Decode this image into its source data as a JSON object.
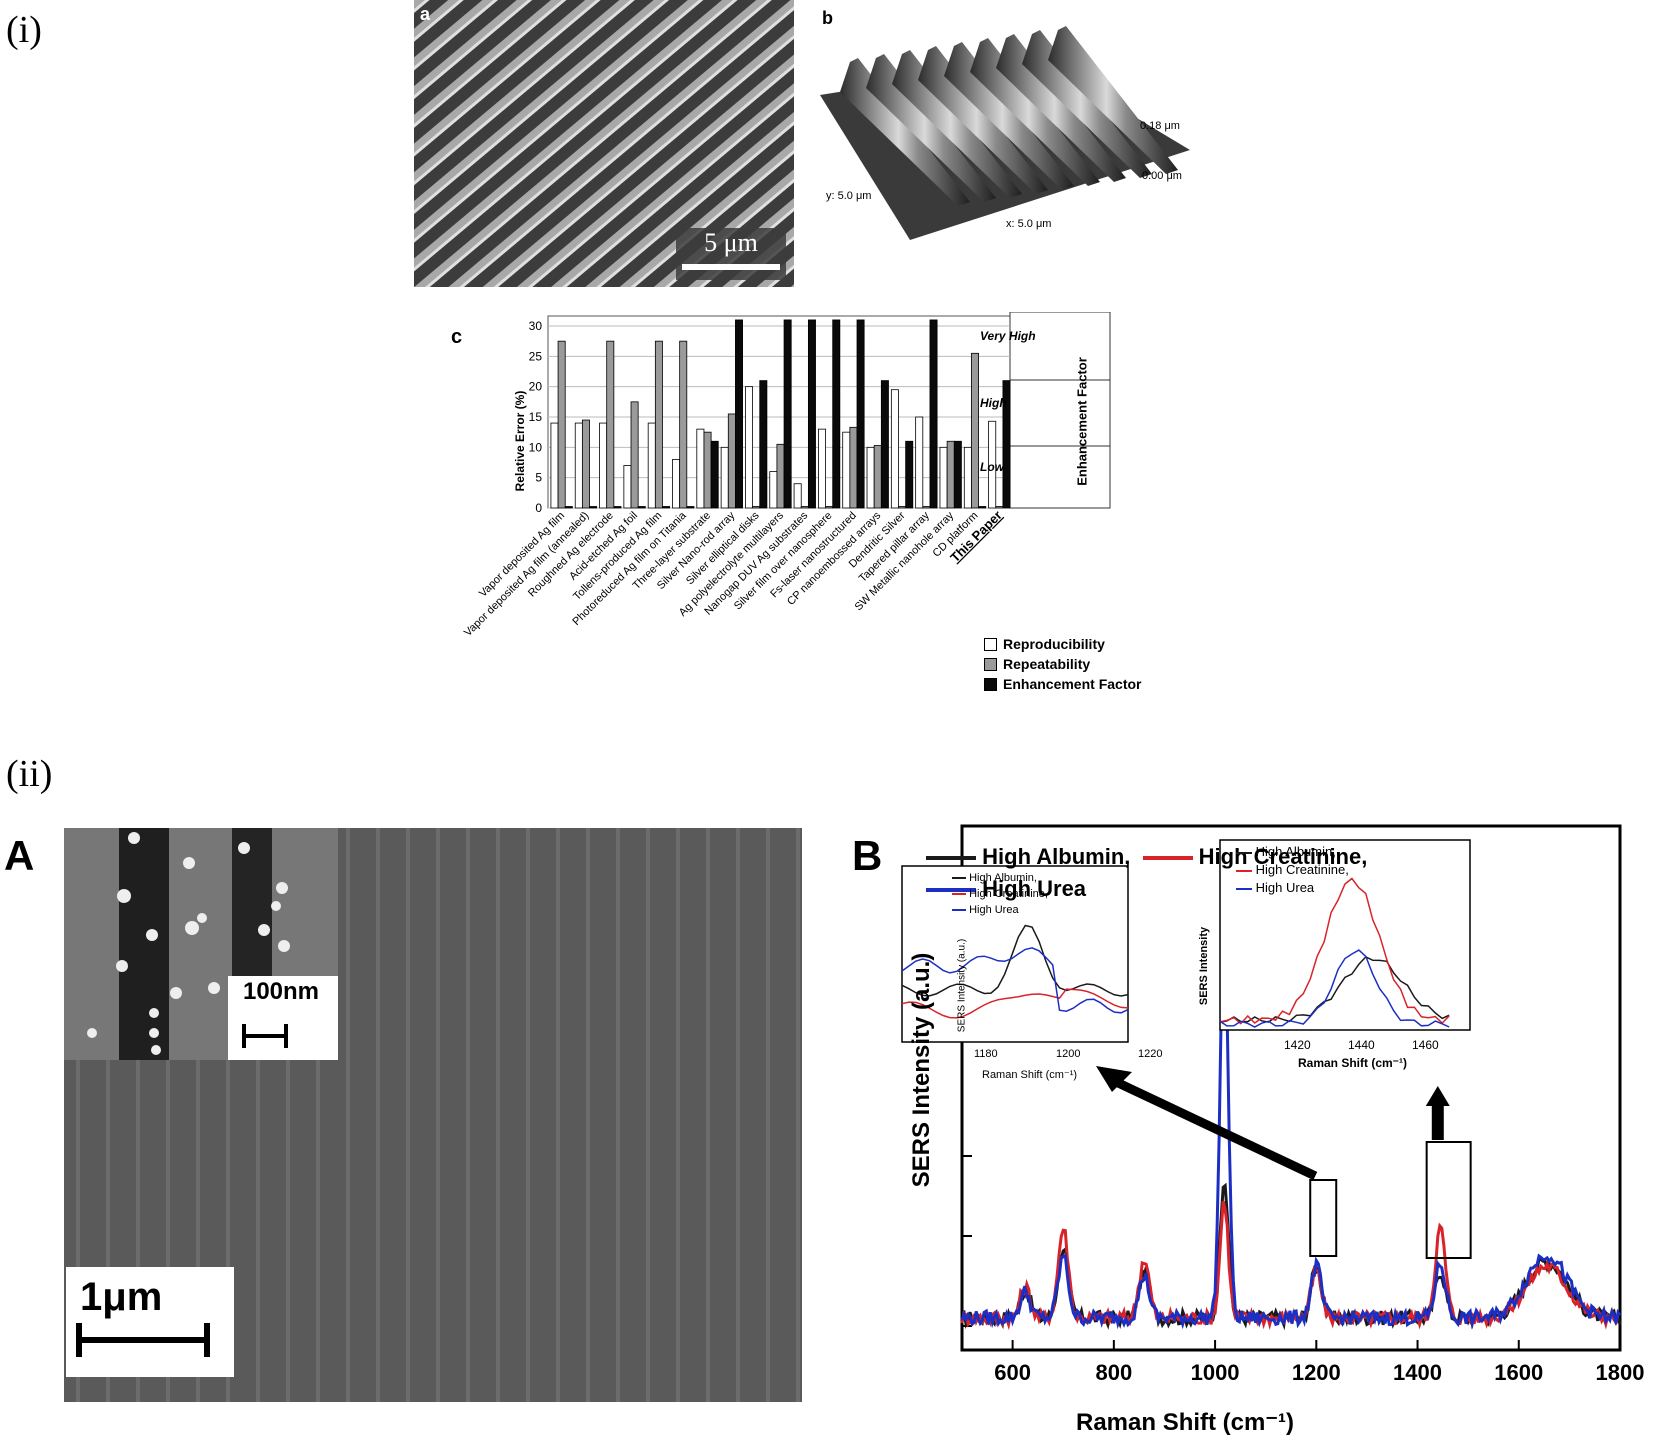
{
  "figure": {
    "part_i_label": "(i)",
    "part_ii_label": "(ii)"
  },
  "panel_a": {
    "letter": "a",
    "scale_bar": "5 μm"
  },
  "panel_b": {
    "letter": "b",
    "z_top": "0.18 μm",
    "z_bottom": "0.00 μm",
    "y_label": "y: 5.0 μm",
    "x_label": "x: 5.0 μm"
  },
  "panel_c": {
    "letter": "c",
    "ylabel": "Relative Error (%)",
    "right_label": "Enhancement Factor",
    "ef_levels": [
      "Very High",
      "High",
      "Low"
    ],
    "legend": [
      "Reproducibility",
      "Repeatability",
      "Enhancement Factor"
    ],
    "colors": {
      "reproducibility": "#ffffff",
      "repeatability": "#9a9a9a",
      "enhancement": "#0a0a0a"
    },
    "chart_data": {
      "type": "bar",
      "ylim": [
        0,
        30
      ],
      "yticks": [
        0,
        5,
        10,
        15,
        20,
        25,
        30
      ],
      "categories": [
        "Vapor deposited Ag film",
        "Vapor deposited Ag film (annealed)",
        "Roughned Ag electrode",
        "Acid-etched Ag foil",
        "Tollens-produced Ag film",
        "Photoreduced Ag film on Titania",
        "Three-layer substrate",
        "Silver Nano-rod array",
        "Silver elliptical disks",
        "Ag polyelectrolyte multilayers",
        "Nanogap DUV Ag substrates",
        "Silver film over nanosphere",
        "Fs-laser nanostructured",
        "CP nanoembossed arrays",
        "Dendritic Silver",
        "Tapered pillar array",
        "SW Metallic nanohole array",
        "CD platform",
        "This Paper"
      ],
      "series": [
        {
          "name": "Reproducibility",
          "values": [
            14,
            14,
            14,
            7,
            14,
            8,
            13,
            10,
            20,
            6,
            4,
            13,
            12.5,
            10,
            19.5,
            15,
            10,
            10,
            14.3
          ]
        },
        {
          "name": "Repeatability",
          "values": [
            27.5,
            14.5,
            27.5,
            17.5,
            27.5,
            27.5,
            12.5,
            15.5,
            0,
            10.5,
            0,
            0,
            13.3,
            10.3,
            0,
            0,
            11,
            25.5,
            0
          ]
        },
        {
          "name": "Enhancement Factor",
          "values": [
            0,
            0,
            0,
            0,
            0,
            0,
            11,
            31,
            21,
            31,
            31,
            31,
            31,
            21,
            11,
            31,
            11,
            0,
            21
          ]
        }
      ]
    }
  },
  "panel_A": {
    "letter": "A",
    "inset_scale": "100nm",
    "scale_bar": "1μm"
  },
  "panel_B": {
    "letter": "B",
    "legend": [
      "High Albumin,",
      "High Creatinine,",
      "High Urea"
    ],
    "colors": {
      "albumin": "#1a1a1a",
      "creatinine": "#d8232a",
      "urea": "#1c2fc4"
    },
    "inset1": {
      "ylabel": "SERS Intensity (a.u.)",
      "xlabel": "Raman Shift (cm⁻¹)",
      "xticks": [
        "1180",
        "1200",
        "1220"
      ],
      "legend": [
        "High Albumin,",
        "High Creatinine,",
        "High Urea"
      ]
    },
    "inset2": {
      "ylabel": "SERS Intensity",
      "xlabel": "Raman Shift (cm⁻¹)",
      "xticks": [
        "1420",
        "1440",
        "1460"
      ],
      "legend": [
        "High Albumin,",
        "High Creatinine,",
        "High Urea"
      ]
    },
    "chart_data": {
      "type": "line",
      "xlabel": "Raman Shift (cm⁻¹)",
      "ylabel": "SERS Intensity (a.u.)",
      "xlim": [
        500,
        1800
      ],
      "xticks": [
        600,
        800,
        1000,
        1200,
        1400,
        1600,
        1800
      ],
      "series": [
        {
          "name": "High Albumin",
          "peaks": [
            [
              625,
              0.12
            ],
            [
              700,
              0.3
            ],
            [
              860,
              0.2
            ],
            [
              1018,
              0.6
            ],
            [
              1200,
              0.22
            ],
            [
              1445,
              0.2
            ],
            [
              1655,
              0.24
            ]
          ]
        },
        {
          "name": "High Creatinine",
          "peaks": [
            [
              625,
              0.13
            ],
            [
              700,
              0.38
            ],
            [
              860,
              0.25
            ],
            [
              1018,
              0.5
            ],
            [
              1200,
              0.2
            ],
            [
              1445,
              0.38
            ],
            [
              1655,
              0.22
            ]
          ]
        },
        {
          "name": "High Urea",
          "peaks": [
            [
              625,
              0.11
            ],
            [
              700,
              0.26
            ],
            [
              860,
              0.18
            ],
            [
              1018,
              1.7
            ],
            [
              1200,
              0.22
            ],
            [
              1445,
              0.23
            ],
            [
              1655,
              0.27
            ]
          ]
        }
      ]
    }
  }
}
